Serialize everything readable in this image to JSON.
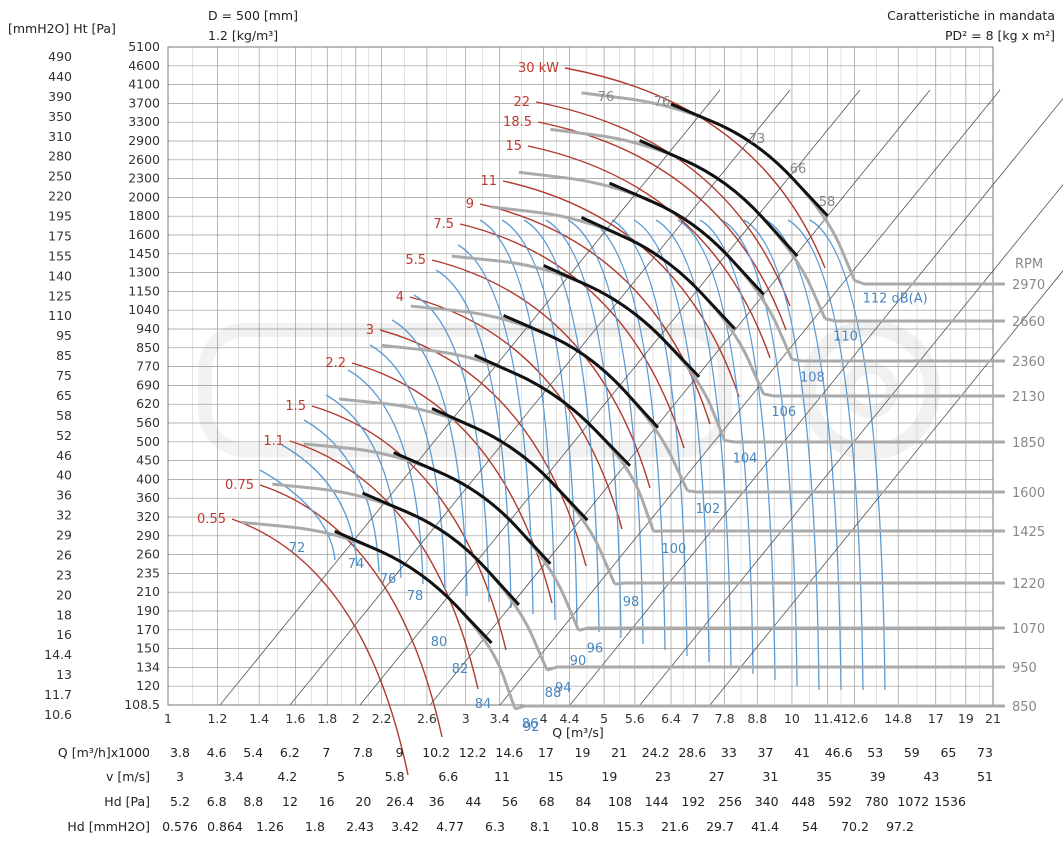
{
  "header": {
    "diameter": "D = 500 [mm]",
    "density": "1.2 [kg/m³]",
    "right_title": "Caratteristiche in mandata",
    "pd2": "PD² = 8 [kg x m²]",
    "left_axis_label": "[mmH2O] Ht [Pa]",
    "rpm_label": "RPM",
    "x_axis_label": "Q [m³/s]"
  },
  "chart_data": {
    "type": "line",
    "title": "",
    "xlabel": "Q [m³/s]",
    "ylabel": "[mmH2O] Ht [Pa]",
    "x_scale": "log",
    "y_scale": "log",
    "xlim": [
      1,
      21
    ],
    "ylim_pa": [
      108.5,
      5100
    ],
    "x_ticks": [
      "1",
      "1.2",
      "1.4",
      "1.6",
      "1.8",
      "2",
      "2.2",
      "2.6",
      "3",
      "3.4",
      "4",
      "4.4",
      "5",
      "5.6",
      "6.4",
      "7",
      "7.8",
      "8.8",
      "10",
      "11.4",
      "12.6",
      "14.8",
      "17",
      "19",
      "21"
    ],
    "x_ticks_val": [
      1,
      1.2,
      1.4,
      1.6,
      1.8,
      2,
      2.2,
      2.6,
      3,
      3.4,
      4,
      4.4,
      5,
      5.6,
      6.4,
      7,
      7.8,
      8.8,
      10,
      11.4,
      12.6,
      14.8,
      17,
      19,
      21
    ],
    "y_ticks_pa": [
      "5100",
      "4600",
      "4100",
      "3700",
      "3300",
      "2900",
      "2600",
      "2300",
      "2000",
      "1800",
      "1600",
      "1450",
      "1300",
      "1150",
      "1040",
      "940",
      "850",
      "770",
      "690",
      "620",
      "560",
      "500",
      "450",
      "400",
      "360",
      "320",
      "290",
      "260",
      "235",
      "210",
      "190",
      "170",
      "150",
      "134",
      "120",
      "108.5"
    ],
    "y_ticks_mm": [
      "490",
      "440",
      "390",
      "350",
      "310",
      "280",
      "250",
      "220",
      "195",
      "175",
      "155",
      "140",
      "125",
      "110",
      "95",
      "85",
      "75",
      "65",
      "58",
      "52",
      "46",
      "40",
      "36",
      "32",
      "29",
      "26",
      "23",
      "20",
      "18",
      "16",
      "14.4",
      "13",
      "11.7",
      "10.6"
    ],
    "secondary_axes": [
      {
        "label": "Q [m³/h]x1000",
        "ticks": [
          "3.8",
          "4.6",
          "5.4",
          "6.2",
          "7",
          "7.8",
          "9",
          "10.2",
          "12.2",
          "14.6",
          "17",
          "19",
          "21",
          "24.2",
          "28.6",
          "33",
          "37",
          "41",
          "46.6",
          "53",
          "59",
          "65",
          "73"
        ]
      },
      {
        "label": "v [m/s]",
        "ticks": [
          "3",
          "3.4",
          "4.2",
          "5",
          "5.8",
          "6.6",
          "11",
          "15",
          "19",
          "23",
          "27",
          "31",
          "35",
          "39",
          "43",
          "51"
        ]
      },
      {
        "label": "Hd [Pa]",
        "ticks": [
          "5.2",
          "6.8",
          "8.8",
          "12",
          "16",
          "20",
          "26.4",
          "36",
          "44",
          "56",
          "68",
          "84",
          "108",
          "144",
          "192",
          "256",
          "340",
          "448",
          "592",
          "780",
          "1072",
          "1536"
        ]
      },
      {
        "label": "Hd [mmH2O]",
        "ticks": [
          "0.576",
          "0.864",
          "1.26",
          "1.8",
          "2.43",
          "3.42",
          "4.77",
          "6.3",
          "8.1",
          "10.8",
          "15.3",
          "21.6",
          "29.7",
          "41.4",
          "54",
          "70.2",
          "97.2"
        ]
      }
    ],
    "fan_curves": [
      {
        "rpm": "2970",
        "q": [
          4.6,
          6.4,
          8.8,
          11.4,
          12.6
        ],
        "pa": [
          3900,
          3650,
          2950,
          1900,
          1300
        ],
        "noise": "112 dB(A)"
      },
      {
        "rpm": "2660",
        "q": [
          4.1,
          5.7,
          7.9,
          10.2,
          11.3
        ],
        "pa": [
          3150,
          2950,
          2350,
          1500,
          1040
        ],
        "noise": "110"
      },
      {
        "rpm": "2360",
        "q": [
          3.65,
          5.1,
          7.0,
          9.0,
          10.0
        ],
        "pa": [
          2450,
          2300,
          1850,
          1200,
          820
        ],
        "noise": "108"
      },
      {
        "rpm": "2130",
        "q": [
          3.3,
          4.6,
          6.3,
          8.1,
          9.0
        ],
        "pa": [
          2000,
          1880,
          1500,
          980,
          670
        ],
        "noise": "106"
      },
      {
        "rpm": "1850",
        "q": [
          2.85,
          4.0,
          5.5,
          7.1,
          7.8
        ],
        "pa": [
          1500,
          1420,
          1130,
          740,
          510
        ],
        "noise": "104"
      },
      {
        "rpm": "1600",
        "q": [
          2.45,
          3.45,
          4.75,
          6.1,
          6.8
        ],
        "pa": [
          1120,
          1060,
          850,
          550,
          380
        ],
        "noise": "102"
      },
      {
        "rpm": "1425",
        "q": [
          2.2,
          3.1,
          4.25,
          5.5,
          6.0
        ],
        "pa": [
          890,
          840,
          670,
          440,
          300
        ],
        "noise": "100"
      },
      {
        "rpm": "1220",
        "q": [
          1.88,
          2.65,
          3.65,
          4.7,
          5.2
        ],
        "pa": [
          650,
          615,
          490,
          320,
          220
        ],
        "noise": "98"
      },
      {
        "rpm": "1070",
        "q": [
          1.65,
          2.3,
          3.2,
          4.1,
          4.55
        ],
        "pa": [
          500,
          475,
          380,
          248,
          168
        ],
        "noise": "96"
      },
      {
        "rpm": "950",
        "q": [
          1.47,
          2.05,
          2.85,
          3.65,
          4.05
        ],
        "pa": [
          395,
          375,
          300,
          195,
          133
        ],
        "noise": "94"
      },
      {
        "rpm": "850",
        "q": [
          1.31,
          1.85,
          2.55,
          3.3,
          3.6
        ],
        "pa": [
          316,
          300,
          240,
          156,
          106
        ],
        "noise": "92"
      }
    ],
    "power_curves": [
      {
        "label": "30 kW"
      },
      {
        "label": "22"
      },
      {
        "label": "18.5"
      },
      {
        "label": "15"
      },
      {
        "label": "11"
      },
      {
        "label": "9"
      },
      {
        "label": "7.5"
      },
      {
        "label": "5.5"
      },
      {
        "label": "4"
      },
      {
        "label": "3"
      },
      {
        "label": "2.2"
      },
      {
        "label": "1.5"
      },
      {
        "label": "1.1"
      },
      {
        "label": "0.75"
      },
      {
        "label": "0.55"
      }
    ],
    "efficiency_labels": [
      "72",
      "74",
      "76",
      "78",
      "80",
      "82",
      "84",
      "86",
      "88",
      "90",
      "76",
      "76",
      "73",
      "66",
      "58"
    ],
    "rpm_values": [
      "2970",
      "2660",
      "2360",
      "2130",
      "1850",
      "1600",
      "1425",
      "1220",
      "1070",
      "950",
      "850"
    ]
  }
}
